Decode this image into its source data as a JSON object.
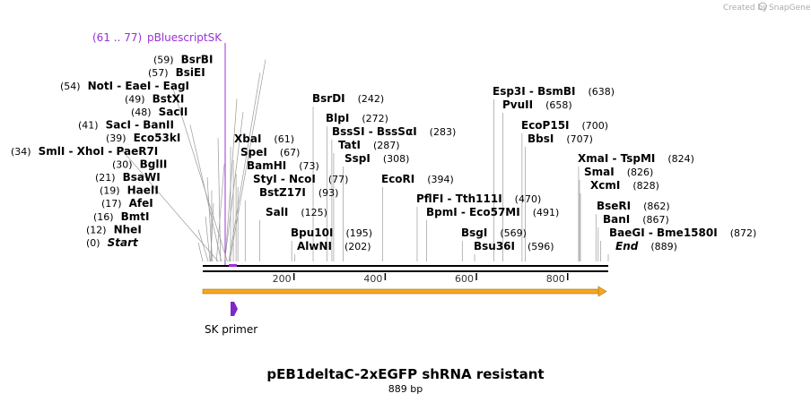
{
  "credit": {
    "created_by": "Created by",
    "brand": "SnapGene"
  },
  "title": "pEB1deltaC-2xEGFP shRNA resistant",
  "length": "889 bp",
  "ticks": [
    "200",
    "400",
    "600",
    "800"
  ],
  "feature_primer": {
    "name": "SK primer",
    "color": "#7d28c9"
  },
  "feature_orf": {
    "color": "#f5a623"
  },
  "feature_label": {
    "range": "(61 .. 77)",
    "name": "pBluescriptSK",
    "color": "#9b30d9"
  },
  "sites": [
    {
      "n1": "(0)",
      "n2": "Start",
      "italic": true,
      "pos": 0
    },
    {
      "n1": "(12)",
      "n2": "NheI",
      "pos": 12
    },
    {
      "n1": "(16)",
      "n2": "BmtI",
      "pos": 16
    },
    {
      "n1": "(17)",
      "n2": "AfeI",
      "pos": 17
    },
    {
      "n1": "(19)",
      "n2": "HaeII",
      "pos": 19
    },
    {
      "n1": "(21)",
      "n2": "BsaWI",
      "pos": 21
    },
    {
      "n1": "(30)",
      "n2": "BglII",
      "pos": 30
    },
    {
      "n1": "(34)",
      "n2": "SmlI  - XhoI  - PaeR7I",
      "pos": 34
    },
    {
      "n1": "(39)",
      "n2": "Eco53kI",
      "pos": 39
    },
    {
      "n1": "(41)",
      "n2": "SacI  - BanII",
      "pos": 41
    },
    {
      "n1": "(48)",
      "n2": "SacII",
      "pos": 48
    },
    {
      "n1": "(49)",
      "n2": "BstXI",
      "pos": 49
    },
    {
      "n1": "(54)",
      "n2": "NotI  - EaeI  - EagI",
      "pos": 54
    },
    {
      "n1": "(57)",
      "n2": "BsiEI",
      "pos": 57
    },
    {
      "n1": "(59)",
      "n2": "BsrBI",
      "pos": 59
    }
  ],
  "sites_right": [
    {
      "n": "XbaI",
      "p": "(61)",
      "pos": 61
    },
    {
      "n": "SpeI",
      "p": "(67)",
      "pos": 67
    },
    {
      "n": "BamHI",
      "p": "(73)",
      "pos": 73
    },
    {
      "n": "StyI  - NcoI",
      "p": "(77)",
      "pos": 77
    },
    {
      "n": "BstZ17I",
      "p": "(93)",
      "pos": 93
    },
    {
      "n": "SalI",
      "p": "(125)",
      "pos": 125
    },
    {
      "n": "Bpu10I",
      "p": "(195)",
      "pos": 195
    },
    {
      "n": "AlwNI",
      "p": "(202)",
      "pos": 202
    },
    {
      "n": "BsrDI",
      "p": "(242)",
      "pos": 242
    },
    {
      "n": "BlpI",
      "p": "(272)",
      "pos": 272
    },
    {
      "n": "BssSI  - BssSαI",
      "p": "(283)",
      "pos": 283
    },
    {
      "n": "TatI",
      "p": "(287)",
      "pos": 287
    },
    {
      "n": "SspI",
      "p": "(308)",
      "pos": 308
    },
    {
      "n": "EcoRI",
      "p": "(394)",
      "pos": 394
    },
    {
      "n": "PflFI  - Tth111I",
      "p": "(470)",
      "pos": 470
    },
    {
      "n": "BpmI  - Eco57MI",
      "p": "(491)",
      "pos": 491
    },
    {
      "n": "BsgI",
      "p": "(569)",
      "pos": 569
    },
    {
      "n": "Bsu36I",
      "p": "(596)",
      "pos": 596
    },
    {
      "n": "Esp3I  - BsmBI",
      "p": "(638)",
      "pos": 638
    },
    {
      "n": "PvuII",
      "p": "(658)",
      "pos": 658
    },
    {
      "n": "EcoP15I",
      "p": "(700)",
      "pos": 700
    },
    {
      "n": "BbsI",
      "p": "(707)",
      "pos": 707
    },
    {
      "n": "XmaI  - TspMI",
      "p": "(824)",
      "pos": 824
    },
    {
      "n": "SmaI",
      "p": "(826)",
      "pos": 826
    },
    {
      "n": "XcmI",
      "p": "(828)",
      "pos": 828
    },
    {
      "n": "BseRI",
      "p": "(862)",
      "pos": 862
    },
    {
      "n": "BanI",
      "p": "(867)",
      "pos": 867
    },
    {
      "n": "BaeGI  - Bme1580I",
      "p": "(872)",
      "pos": 872
    },
    {
      "n": "End",
      "p": "(889)",
      "pos": 889,
      "italic": true
    }
  ]
}
